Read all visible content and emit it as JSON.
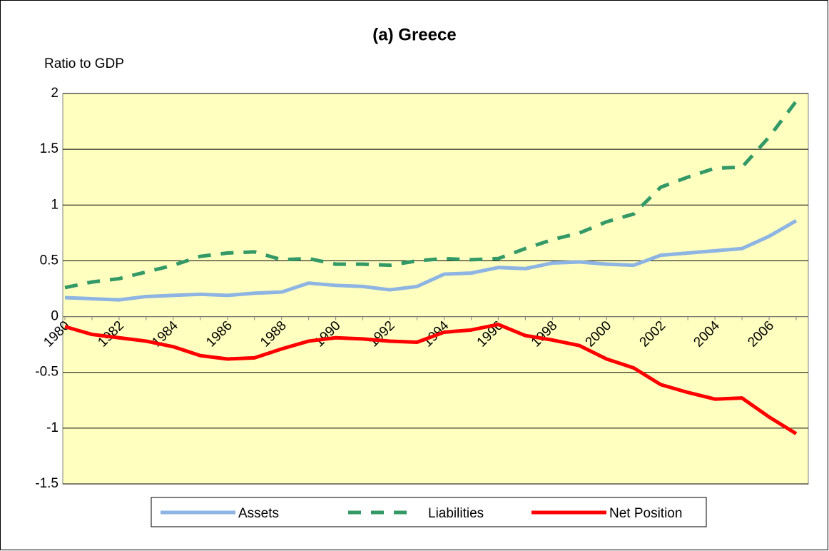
{
  "chart_data": {
    "type": "line",
    "title": "(a) Greece",
    "y_label": "Ratio to GDP",
    "categories": [
      "1980",
      null,
      "1982",
      null,
      "1984",
      null,
      "1986",
      null,
      "1988",
      null,
      "1990",
      null,
      "1992",
      null,
      "1994",
      null,
      "1996",
      null,
      "1998",
      null,
      "2000",
      null,
      "2002",
      null,
      "2004",
      null,
      "2006",
      null
    ],
    "series": [
      {
        "name": "Assets",
        "color": "#8db4e2",
        "style": "solid",
        "values": [
          0.17,
          0.16,
          0.15,
          0.18,
          0.19,
          0.2,
          0.19,
          0.21,
          0.22,
          0.3,
          0.28,
          0.27,
          0.24,
          0.27,
          0.38,
          0.39,
          0.44,
          0.43,
          0.48,
          0.49,
          0.47,
          0.46,
          0.55,
          0.57,
          0.59,
          0.61,
          0.72,
          0.86
        ]
      },
      {
        "name": "Liabilities",
        "color": "#339966",
        "style": "dashed",
        "values": [
          0.26,
          0.31,
          0.34,
          0.4,
          0.46,
          0.54,
          0.57,
          0.58,
          0.51,
          0.52,
          0.47,
          0.47,
          0.46,
          0.5,
          0.52,
          0.51,
          0.52,
          0.61,
          0.69,
          0.75,
          0.85,
          0.92,
          1.16,
          1.25,
          1.33,
          1.34,
          1.61,
          1.93
        ]
      },
      {
        "name": "Net Position",
        "color": "#ff0000",
        "style": "solid",
        "values": [
          -0.09,
          -0.16,
          -0.19,
          -0.22,
          -0.27,
          -0.35,
          -0.38,
          -0.37,
          -0.29,
          -0.22,
          -0.19,
          -0.2,
          -0.22,
          -0.23,
          -0.14,
          -0.12,
          -0.07,
          -0.17,
          -0.21,
          -0.26,
          -0.38,
          -0.46,
          -0.61,
          -0.68,
          -0.74,
          -0.73,
          -0.9,
          -1.05
        ]
      }
    ],
    "ylim": [
      -1.5,
      2
    ],
    "yticks": [
      -1.5,
      -1,
      -0.5,
      0,
      0.5,
      1,
      1.5,
      2
    ],
    "grid": true,
    "legend": "bottom",
    "plot_background": "#ffffc0"
  }
}
